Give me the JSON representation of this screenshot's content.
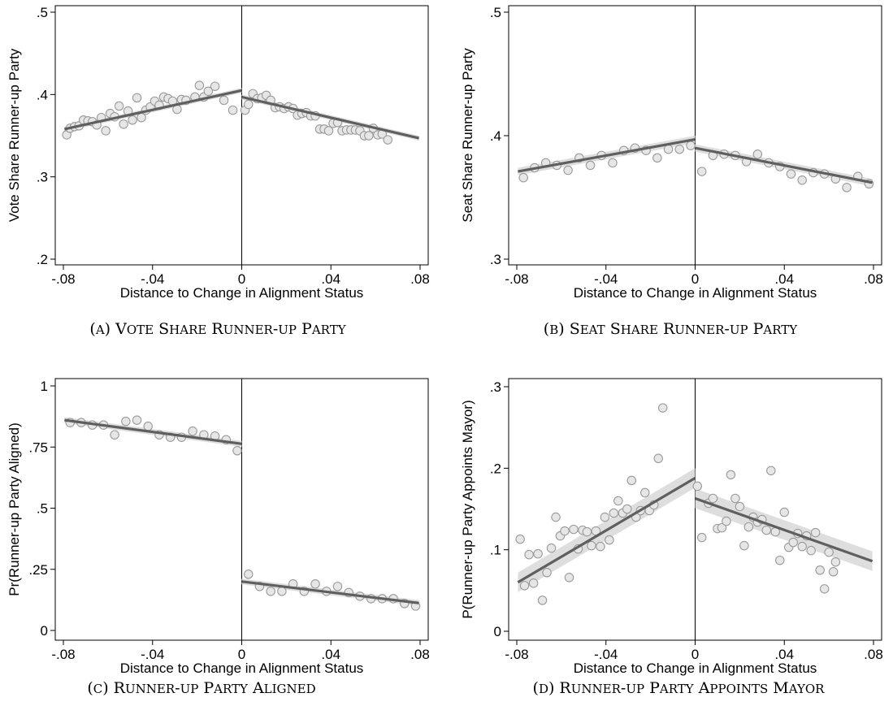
{
  "chart_data": [
    {
      "type": "scatter",
      "caption": "(a) Vote Share Runner-up Party",
      "xlabel": "Distance to Change in Alignment Status",
      "ylabel": "Vote Share Runner-up Party",
      "xlim": [
        -0.08,
        0.08
      ],
      "ylim": [
        0.2,
        0.5
      ],
      "xticks": [
        -0.08,
        -0.04,
        0,
        0.04,
        0.08
      ],
      "xticklabels": [
        "-.08",
        "-.04",
        "0",
        ".04",
        ".08"
      ],
      "yticks": [
        0.2,
        0.3,
        0.4,
        0.5
      ],
      "yticklabels": [
        ".2",
        ".3",
        ".4",
        ".5"
      ],
      "cutoff": 0,
      "fit_left": {
        "x": [
          -0.0795,
          0
        ],
        "y": [
          0.358,
          0.405
        ]
      },
      "fit_right": {
        "x": [
          0,
          0.0795
        ],
        "y": [
          0.397,
          0.347
        ]
      },
      "ci_halfwidth": 0.003,
      "points": [
        [
          -0.0785,
          0.351
        ],
        [
          -0.077,
          0.359
        ],
        [
          -0.075,
          0.361
        ],
        [
          -0.073,
          0.362
        ],
        [
          -0.071,
          0.369
        ],
        [
          -0.069,
          0.368
        ],
        [
          -0.067,
          0.367
        ],
        [
          -0.065,
          0.363
        ],
        [
          -0.063,
          0.372
        ],
        [
          -0.061,
          0.356
        ],
        [
          -0.059,
          0.377
        ],
        [
          -0.057,
          0.373
        ],
        [
          -0.055,
          0.386
        ],
        [
          -0.053,
          0.364
        ],
        [
          -0.051,
          0.38
        ],
        [
          -0.049,
          0.369
        ],
        [
          -0.047,
          0.396
        ],
        [
          -0.045,
          0.372
        ],
        [
          -0.043,
          0.381
        ],
        [
          -0.041,
          0.385
        ],
        [
          -0.039,
          0.392
        ],
        [
          -0.037,
          0.387
        ],
        [
          -0.035,
          0.397
        ],
        [
          -0.033,
          0.395
        ],
        [
          -0.031,
          0.392
        ],
        [
          -0.029,
          0.382
        ],
        [
          -0.027,
          0.394
        ],
        [
          -0.025,
          0.393
        ],
        [
          -0.021,
          0.397
        ],
        [
          -0.019,
          0.411
        ],
        [
          -0.017,
          0.397
        ],
        [
          -0.015,
          0.404
        ],
        [
          -0.012,
          0.41
        ],
        [
          -0.008,
          0.393
        ],
        [
          -0.004,
          0.381
        ],
        [
          0.0015,
          0.381
        ],
        [
          0.003,
          0.388
        ],
        [
          0.005,
          0.401
        ],
        [
          0.007,
          0.395
        ],
        [
          0.009,
          0.396
        ],
        [
          0.011,
          0.399
        ],
        [
          0.013,
          0.393
        ],
        [
          0.015,
          0.384
        ],
        [
          0.017,
          0.385
        ],
        [
          0.019,
          0.383
        ],
        [
          0.021,
          0.385
        ],
        [
          0.023,
          0.383
        ],
        [
          0.025,
          0.375
        ],
        [
          0.027,
          0.377
        ],
        [
          0.029,
          0.378
        ],
        [
          0.031,
          0.374
        ],
        [
          0.033,
          0.374
        ],
        [
          0.035,
          0.358
        ],
        [
          0.037,
          0.358
        ],
        [
          0.039,
          0.356
        ],
        [
          0.041,
          0.365
        ],
        [
          0.043,
          0.366
        ],
        [
          0.045,
          0.356
        ],
        [
          0.047,
          0.357
        ],
        [
          0.049,
          0.357
        ],
        [
          0.051,
          0.357
        ],
        [
          0.053,
          0.356
        ],
        [
          0.055,
          0.35
        ],
        [
          0.057,
          0.35
        ],
        [
          0.059,
          0.359
        ],
        [
          0.061,
          0.351
        ],
        [
          0.063,
          0.352
        ],
        [
          0.0655,
          0.345
        ]
      ]
    },
    {
      "type": "scatter",
      "caption": "(b) Seat Share Runner-up Party",
      "xlabel": "Distance to Change in Alignment Status",
      "ylabel": "Seat Share Runner-up Party",
      "xlim": [
        -0.08,
        0.08
      ],
      "ylim": [
        0.23,
        0.51
      ],
      "xticks": [
        -0.08,
        -0.04,
        0,
        0.04,
        0.08
      ],
      "xticklabels": [
        "-.08",
        "-.04",
        "0",
        ".04",
        ".08"
      ],
      "yticks": [
        0.3,
        0.4,
        0.5
      ],
      "yticklabels": [
        ".3",
        ".4",
        ".5"
      ],
      "cutoff": 0,
      "fit_left": {
        "x": [
          -0.0795,
          0
        ],
        "y": [
          0.371,
          0.397
        ]
      },
      "fit_right": {
        "x": [
          0,
          0.0795
        ],
        "y": [
          0.39,
          0.362
        ]
      },
      "ci_halfwidth": 0.003,
      "points": [
        [
          -0.077,
          0.366
        ],
        [
          -0.072,
          0.374
        ],
        [
          -0.067,
          0.378
        ],
        [
          -0.062,
          0.376
        ],
        [
          -0.057,
          0.372
        ],
        [
          -0.052,
          0.382
        ],
        [
          -0.047,
          0.376
        ],
        [
          -0.042,
          0.384
        ],
        [
          -0.037,
          0.378
        ],
        [
          -0.032,
          0.388
        ],
        [
          -0.027,
          0.39
        ],
        [
          -0.022,
          0.388
        ],
        [
          -0.017,
          0.382
        ],
        [
          -0.012,
          0.389
        ],
        [
          -0.007,
          0.389
        ],
        [
          -0.002,
          0.392
        ],
        [
          0.003,
          0.371
        ],
        [
          0.008,
          0.384
        ],
        [
          0.013,
          0.385
        ],
        [
          0.018,
          0.384
        ],
        [
          0.023,
          0.379
        ],
        [
          0.028,
          0.385
        ],
        [
          0.033,
          0.378
        ],
        [
          0.038,
          0.375
        ],
        [
          0.043,
          0.369
        ],
        [
          0.048,
          0.364
        ],
        [
          0.053,
          0.37
        ],
        [
          0.058,
          0.369
        ],
        [
          0.063,
          0.365
        ],
        [
          0.068,
          0.358
        ],
        [
          0.073,
          0.367
        ],
        [
          0.078,
          0.361
        ]
      ]
    },
    {
      "type": "scatter",
      "caption": "(c) Runner-up Party Aligned",
      "xlabel": "Distance to Change in Alignment Status",
      "ylabel": "Pr(Runner-up Party Aligned)",
      "xlim": [
        -0.08,
        0.08
      ],
      "ylim": [
        0,
        1
      ],
      "xticks": [
        -0.08,
        -0.04,
        0,
        0.04,
        0.08
      ],
      "xticklabels": [
        "-.08",
        "-.04",
        "0",
        ".04",
        ".08"
      ],
      "yticks": [
        0,
        0.25,
        0.5,
        0.75,
        1
      ],
      "yticklabels": [
        "0",
        ".25",
        ".5",
        ".75",
        "1"
      ],
      "cutoff": 0,
      "fit_left": {
        "x": [
          -0.0795,
          0
        ],
        "y": [
          0.86,
          0.763
        ]
      },
      "fit_right": {
        "x": [
          0,
          0.0795
        ],
        "y": [
          0.2,
          0.112
        ]
      },
      "ci_halfwidth": 0.012,
      "points": [
        [
          -0.077,
          0.85
        ],
        [
          -0.072,
          0.85
        ],
        [
          -0.067,
          0.84
        ],
        [
          -0.062,
          0.84
        ],
        [
          -0.057,
          0.8
        ],
        [
          -0.052,
          0.855
        ],
        [
          -0.047,
          0.86
        ],
        [
          -0.042,
          0.835
        ],
        [
          -0.037,
          0.8
        ],
        [
          -0.032,
          0.79
        ],
        [
          -0.027,
          0.79
        ],
        [
          -0.022,
          0.815
        ],
        [
          -0.017,
          0.8
        ],
        [
          -0.012,
          0.795
        ],
        [
          -0.007,
          0.78
        ],
        [
          -0.002,
          0.735
        ],
        [
          0.003,
          0.23
        ],
        [
          0.008,
          0.18
        ],
        [
          0.013,
          0.16
        ],
        [
          0.018,
          0.16
        ],
        [
          0.023,
          0.19
        ],
        [
          0.028,
          0.16
        ],
        [
          0.033,
          0.19
        ],
        [
          0.038,
          0.16
        ],
        [
          0.043,
          0.18
        ],
        [
          0.048,
          0.155
        ],
        [
          0.053,
          0.14
        ],
        [
          0.058,
          0.13
        ],
        [
          0.063,
          0.13
        ],
        [
          0.068,
          0.13
        ],
        [
          0.073,
          0.11
        ],
        [
          0.078,
          0.1
        ]
      ]
    },
    {
      "type": "scatter",
      "caption": "(d) Runner-up Party Appoints Mayor",
      "xlabel": "Distance to Change in Alignment Status",
      "ylabel": "P(Runner-up Party Appoints Mayor)",
      "xlim": [
        -0.08,
        0.08
      ],
      "ylim": [
        0,
        0.3
      ],
      "xticks": [
        -0.08,
        -0.04,
        0,
        0.04,
        0.08
      ],
      "xticklabels": [
        "-.08",
        "-.04",
        "0",
        ".04",
        ".08"
      ],
      "yticks": [
        0,
        0.1,
        0.2,
        0.3
      ],
      "yticklabels": [
        "0",
        ".1",
        ".2",
        ".3"
      ],
      "cutoff": 0,
      "fit_left": {
        "x": [
          -0.0795,
          0
        ],
        "y": [
          0.06,
          0.188
        ]
      },
      "fit_right": {
        "x": [
          0,
          0.0795
        ],
        "y": [
          0.163,
          0.086
        ]
      },
      "ci_halfwidth": 0.012,
      "points": [
        [
          -0.0785,
          0.113
        ],
        [
          -0.0765,
          0.056
        ],
        [
          -0.0745,
          0.094
        ],
        [
          -0.0725,
          0.059
        ],
        [
          -0.0705,
          0.095
        ],
        [
          -0.0685,
          0.038
        ],
        [
          -0.0665,
          0.072
        ],
        [
          -0.0645,
          0.102
        ],
        [
          -0.0625,
          0.14
        ],
        [
          -0.0605,
          0.117
        ],
        [
          -0.0585,
          0.123
        ],
        [
          -0.0565,
          0.066
        ],
        [
          -0.0545,
          0.125
        ],
        [
          -0.0525,
          0.101
        ],
        [
          -0.0505,
          0.124
        ],
        [
          -0.0485,
          0.122
        ],
        [
          -0.0465,
          0.105
        ],
        [
          -0.0445,
          0.123
        ],
        [
          -0.0425,
          0.104
        ],
        [
          -0.0405,
          0.14
        ],
        [
          -0.0385,
          0.112
        ],
        [
          -0.0365,
          0.145
        ],
        [
          -0.0345,
          0.16
        ],
        [
          -0.0325,
          0.145
        ],
        [
          -0.0305,
          0.15
        ],
        [
          -0.0285,
          0.185
        ],
        [
          -0.0265,
          0.14
        ],
        [
          -0.0245,
          0.148
        ],
        [
          -0.0225,
          0.17
        ],
        [
          -0.0205,
          0.148
        ],
        [
          -0.0185,
          0.155
        ],
        [
          -0.0165,
          0.212
        ],
        [
          -0.0145,
          0.274
        ],
        [
          0.001,
          0.178
        ],
        [
          0.003,
          0.115
        ],
        [
          0.006,
          0.157
        ],
        [
          0.008,
          0.163
        ],
        [
          0.01,
          0.126
        ],
        [
          0.012,
          0.127
        ],
        [
          0.014,
          0.135
        ],
        [
          0.016,
          0.192
        ],
        [
          0.018,
          0.163
        ],
        [
          0.02,
          0.153
        ],
        [
          0.022,
          0.105
        ],
        [
          0.024,
          0.128
        ],
        [
          0.026,
          0.14
        ],
        [
          0.028,
          0.134
        ],
        [
          0.03,
          0.137
        ],
        [
          0.032,
          0.124
        ],
        [
          0.034,
          0.197
        ],
        [
          0.036,
          0.122
        ],
        [
          0.038,
          0.087
        ],
        [
          0.04,
          0.146
        ],
        [
          0.042,
          0.103
        ],
        [
          0.044,
          0.109
        ],
        [
          0.046,
          0.12
        ],
        [
          0.048,
          0.104
        ],
        [
          0.05,
          0.117
        ],
        [
          0.052,
          0.099
        ],
        [
          0.054,
          0.121
        ],
        [
          0.056,
          0.075
        ],
        [
          0.058,
          0.052
        ],
        [
          0.06,
          0.097
        ],
        [
          0.062,
          0.073
        ],
        [
          0.063,
          0.085
        ]
      ]
    }
  ]
}
